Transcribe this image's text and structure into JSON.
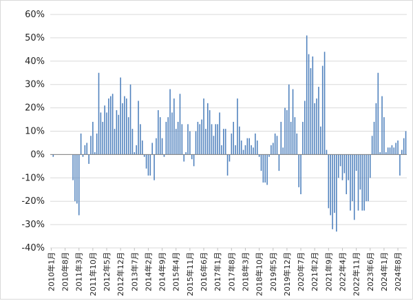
{
  "chart_data": {
    "type": "bar",
    "title": "",
    "xlabel": "",
    "ylabel": "",
    "ylim": [
      -40,
      60
    ],
    "y_ticks": [
      60,
      50,
      40,
      30,
      20,
      10,
      0,
      -10,
      -20,
      -30,
      -40
    ],
    "y_tick_labels": [
      "60%",
      "50%",
      "40%",
      "30%",
      "20%",
      "10%",
      "0%",
      "-10%",
      "-20%",
      "-30%",
      "-40%"
    ],
    "grid": true,
    "legend": "none",
    "bar_color": "#4f81bd",
    "x_tick_labels": [
      "2010年1月",
      "2010年8月",
      "2011年3月",
      "2011年10月",
      "2012年5月",
      "2012年12月",
      "2013年7月",
      "2014年2月",
      "2014年9月",
      "2015年4月",
      "2015年11月",
      "2016年6月",
      "2017年1月",
      "2017年8月",
      "2018年3月",
      "2018年10月",
      "2019年5月",
      "2019年12月",
      "2020年7月",
      "2021年2月",
      "2021年9月",
      "2022年4月",
      "2022年11月",
      "2023年6月",
      "2024年1月",
      "2024年8月"
    ],
    "values": [
      0,
      -1,
      0,
      0,
      0,
      0,
      0,
      0,
      0,
      0,
      0,
      -11,
      -20,
      -21,
      -26,
      9,
      -1,
      4,
      5,
      -4,
      8,
      14,
      1,
      9,
      35,
      18,
      14,
      21,
      18,
      24,
      25,
      26,
      11,
      19,
      17,
      33,
      22,
      25,
      24,
      16,
      30,
      11,
      1,
      4,
      23,
      13,
      6,
      -1,
      -6,
      -9,
      -9,
      5,
      -11,
      7,
      19,
      16,
      7,
      -1,
      14,
      16,
      28,
      18,
      24,
      11,
      14,
      26,
      13,
      -3,
      1,
      13,
      10,
      -2,
      -5,
      10,
      14,
      13,
      15,
      24,
      11,
      22,
      19,
      13,
      8,
      13,
      13,
      18,
      4,
      11,
      11,
      -9,
      -3,
      9,
      14,
      4,
      24,
      12,
      6,
      2,
      4,
      7,
      7,
      4,
      3,
      9,
      6,
      -1,
      -7,
      -12,
      -12,
      -13,
      -1,
      4,
      5,
      9,
      8,
      -7,
      14,
      3,
      20,
      19,
      30,
      14,
      28,
      16,
      9,
      -14,
      -17,
      14,
      23,
      51,
      43,
      37,
      42,
      22,
      24,
      29,
      12,
      38,
      44,
      2,
      -23,
      -26,
      -32,
      -25,
      -33,
      -10,
      -5,
      -11,
      -8,
      -17,
      -11,
      -24,
      -20,
      -28,
      -7,
      -24,
      -15,
      -24,
      -24,
      -20,
      -20,
      -10,
      8,
      14,
      22,
      35,
      1,
      25,
      16,
      1,
      3,
      3,
      4,
      3,
      5,
      6,
      -9,
      2,
      7,
      10
    ]
  }
}
